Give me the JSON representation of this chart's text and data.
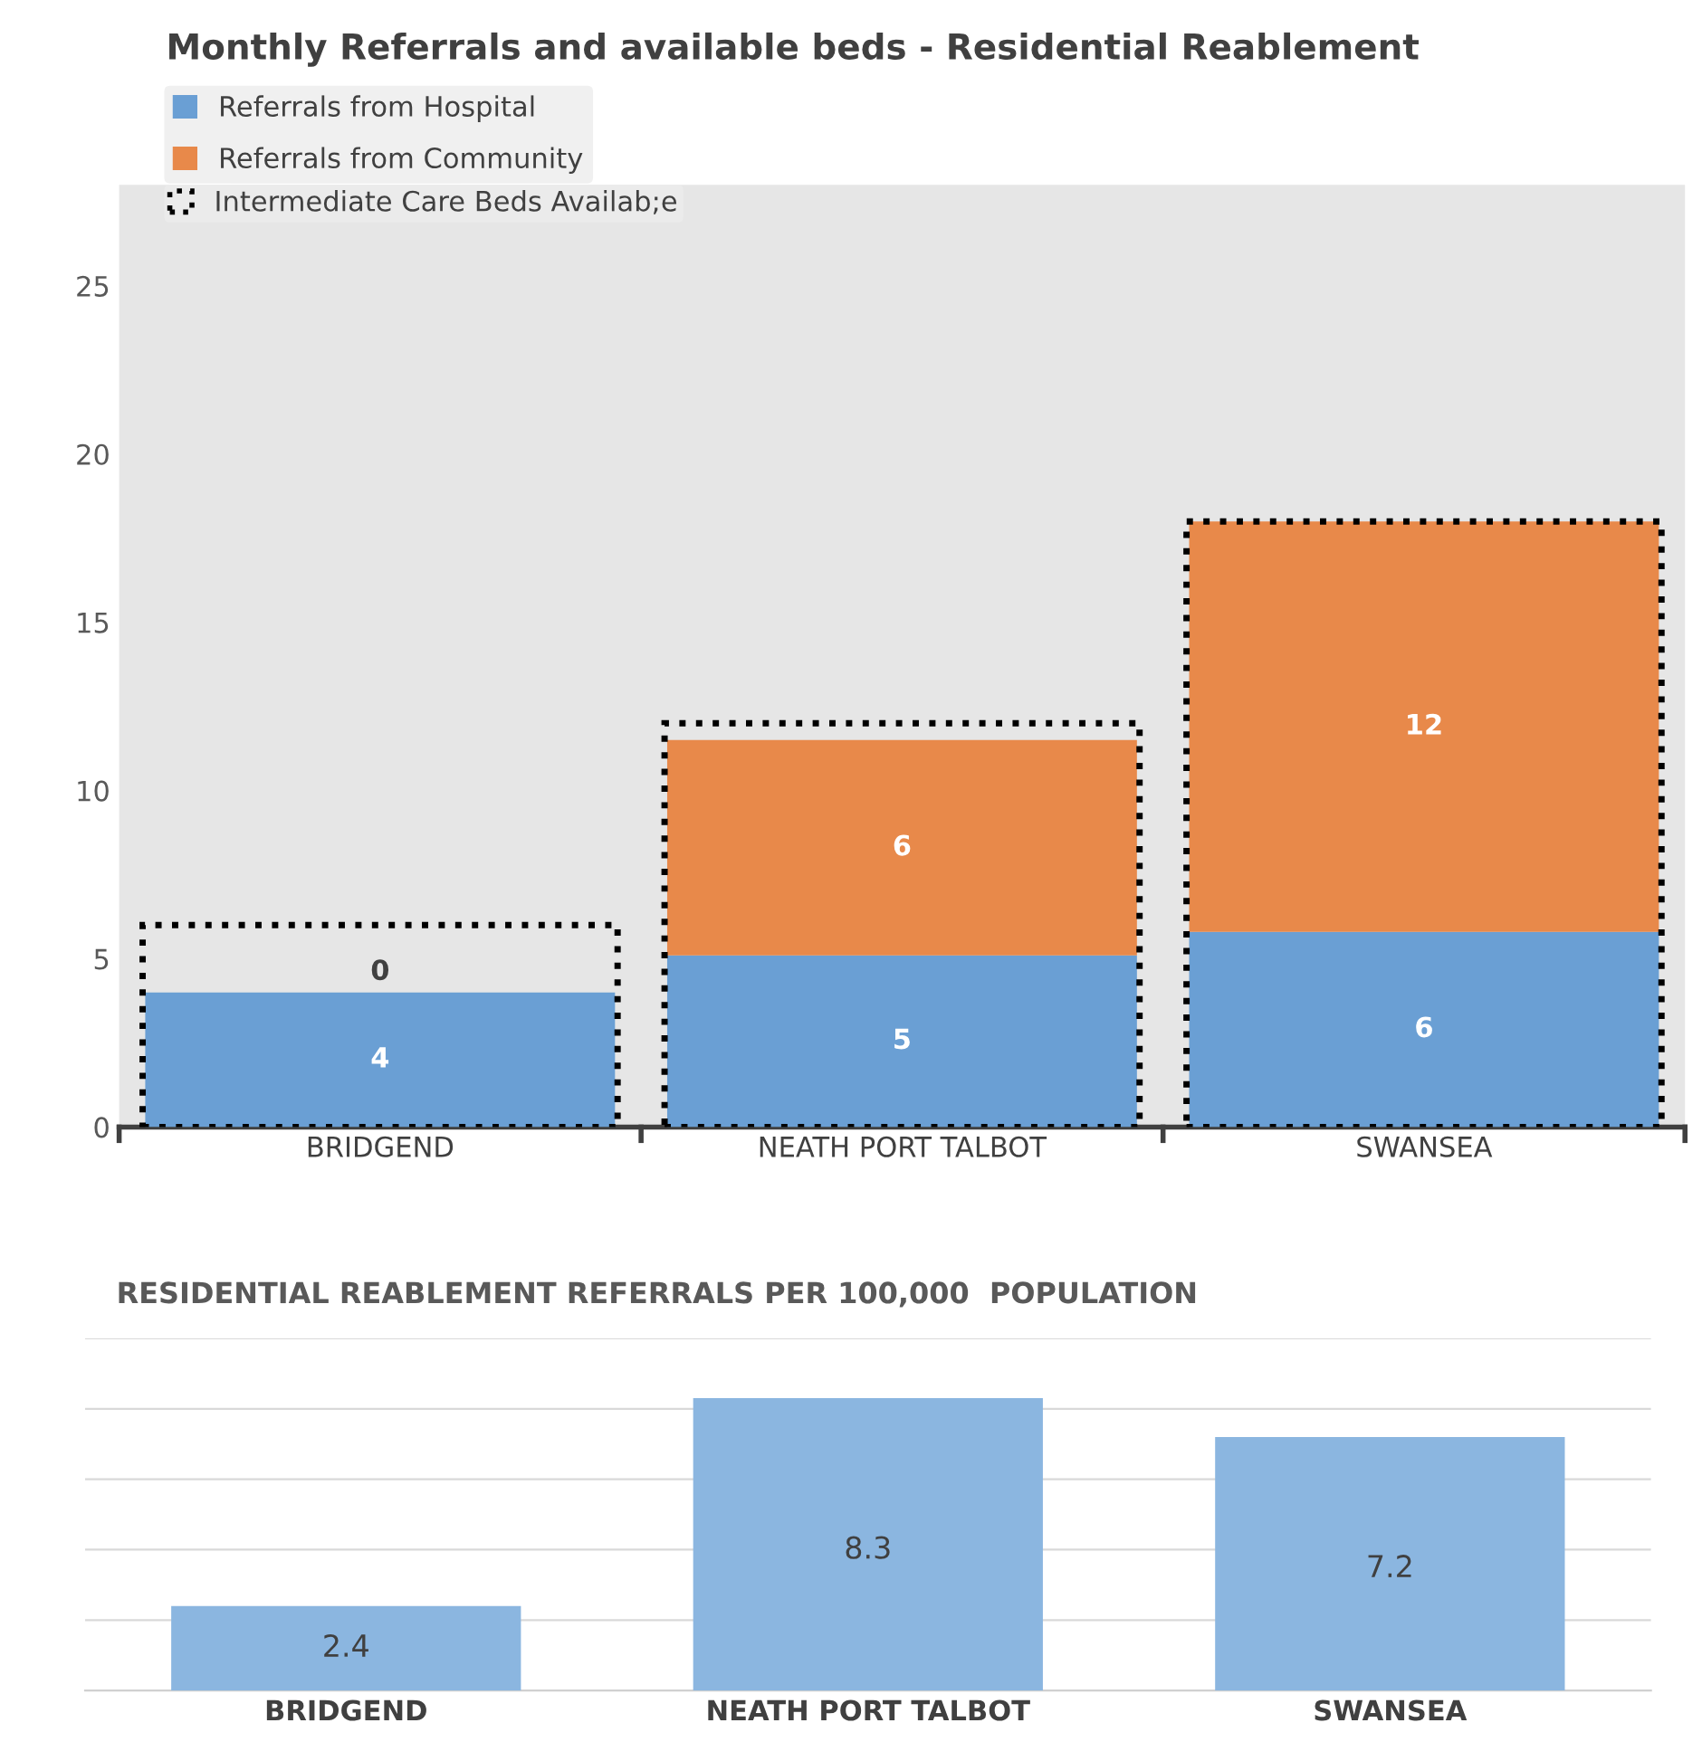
{
  "chart_data": [
    {
      "type": "bar",
      "title": "Monthly Referrals and available beds - Residential Reablement",
      "categories": [
        "BRIDGEND",
        "NEATH PORT TALBOT",
        "SWANSEA"
      ],
      "stacked": true,
      "ylim": [
        0,
        28
      ],
      "yticks": [
        0,
        5,
        10,
        15,
        20,
        25
      ],
      "legend": "top left",
      "series": [
        {
          "name": "Referrals from Hospital",
          "color": "#6a9fd4",
          "values": [
            4,
            5.1,
            5.8
          ],
          "value_labels": [
            "4",
            "5",
            "6"
          ]
        },
        {
          "name": "Referrals from Community",
          "color": "#e8894a",
          "values": [
            0,
            6.4,
            12.2
          ],
          "value_labels": [
            "0",
            "6",
            "12"
          ]
        }
      ]
    },
    {
      "type": "bar",
      "categories": [
        null,
        null,
        null
      ],
      "ylim": [
        0,
        28
      ],
      "yticks": [
        0,
        5,
        10,
        15,
        20,
        25
      ],
      "tick_labels": false,
      "legend": "top left",
      "series": [
        {
          "name": "Intermediate Care Beds Availab;e",
          "color": "#000000",
          "values": [
            6,
            12,
            18
          ],
          "line_style": "dotted"
        }
      ]
    },
    {
      "type": "bar",
      "title": "RESIDENTIAL REABLEMENT REFERRALS PER 100,000  POPULATION",
      "categories": [
        "BRIDGEND",
        "NEATH PORT TALBOT",
        "SWANSEA"
      ],
      "values": [
        2.4,
        8.3,
        7.2
      ],
      "color": "#8bb6e0",
      "data_labels": true,
      "ylim": [
        0,
        10
      ],
      "yticks": [
        {
          "value": 0,
          "label": null
        },
        {
          "value": 2,
          "label": null
        },
        {
          "value": 4,
          "label": null
        },
        {
          "value": 6,
          "label": null
        },
        {
          "value": 8,
          "label": null
        },
        {
          "value": 10,
          "label": null
        }
      ],
      "grid": "y",
      "tick_labels": "x"
    }
  ]
}
